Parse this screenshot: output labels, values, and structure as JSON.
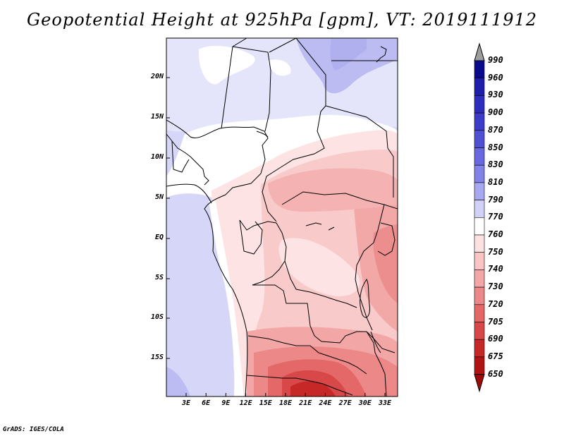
{
  "title": "Geopotential Height at 925hPa [gpm], VT: 2019111912",
  "credit": "GrADS: IGES/COLA",
  "map": {
    "lat_labels": [
      "20N",
      "15N",
      "10N",
      "5N",
      "EQ",
      "5S",
      "10S",
      "15S"
    ],
    "lon_labels": [
      "3E",
      "6E",
      "9E",
      "12E",
      "15E",
      "18E",
      "21E",
      "24E",
      "27E",
      "30E",
      "33E"
    ]
  },
  "colorbar": {
    "levels": [
      "990",
      "960",
      "930",
      "900",
      "870",
      "850",
      "830",
      "810",
      "790",
      "770",
      "760",
      "750",
      "740",
      "730",
      "720",
      "705",
      "690",
      "675",
      "650"
    ],
    "colors": [
      "#9e9e9e",
      "#0a0a8c",
      "#1e1eaa",
      "#2e2ebe",
      "#3c3cc8",
      "#5050d4",
      "#6868e0",
      "#8282e8",
      "#a8a8f0",
      "#d2d2f8",
      "#ffffff",
      "#fde2e2",
      "#f8c4c4",
      "#f3a6a6",
      "#ec8888",
      "#e46868",
      "#d84848",
      "#c62828",
      "#b01414",
      "#9e0a0a"
    ]
  }
}
